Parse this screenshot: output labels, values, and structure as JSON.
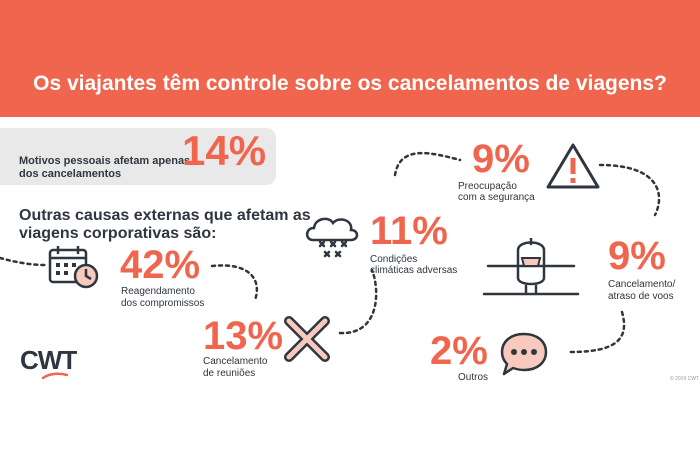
{
  "header": {
    "title": "Os viajantes têm controle sobre os cancelamentos de viagens?"
  },
  "personal": {
    "text_line1": "Motivos pessoais afetam apenas",
    "text_line2": "dos cancelamentos",
    "percent": "14%"
  },
  "external": {
    "line1": "Outras causas externas que afetam as",
    "line2": "viagens corporativas são:"
  },
  "stats": [
    {
      "percent": "42%",
      "line1": "Reagendamento",
      "line2": "dos compromissos",
      "icon": "calendar-clock-icon"
    },
    {
      "percent": "13%",
      "line1": "Cancelamento",
      "line2": "de reuniões",
      "icon": "x-cross-icon"
    },
    {
      "percent": "11%",
      "line1": "Condições",
      "line2": "climáticas adversas",
      "icon": "storm-cloud-icon"
    },
    {
      "percent": "9%",
      "line1": "Preocupação",
      "line2": "com a segurança",
      "icon": "warning-triangle-icon"
    },
    {
      "percent": "9%",
      "line1": "Cancelamento/",
      "line2": "atraso de voos",
      "icon": "airplane-icon"
    },
    {
      "percent": "2%",
      "line1": "Outros",
      "line2": "",
      "icon": "speech-bubble-icon"
    }
  ],
  "brand": {
    "logo": "CWT",
    "copyright": "© 2019 CWT"
  },
  "colors": {
    "accent": "#f0654d",
    "text": "#2f3640",
    "panel": "#e9e9ea"
  }
}
